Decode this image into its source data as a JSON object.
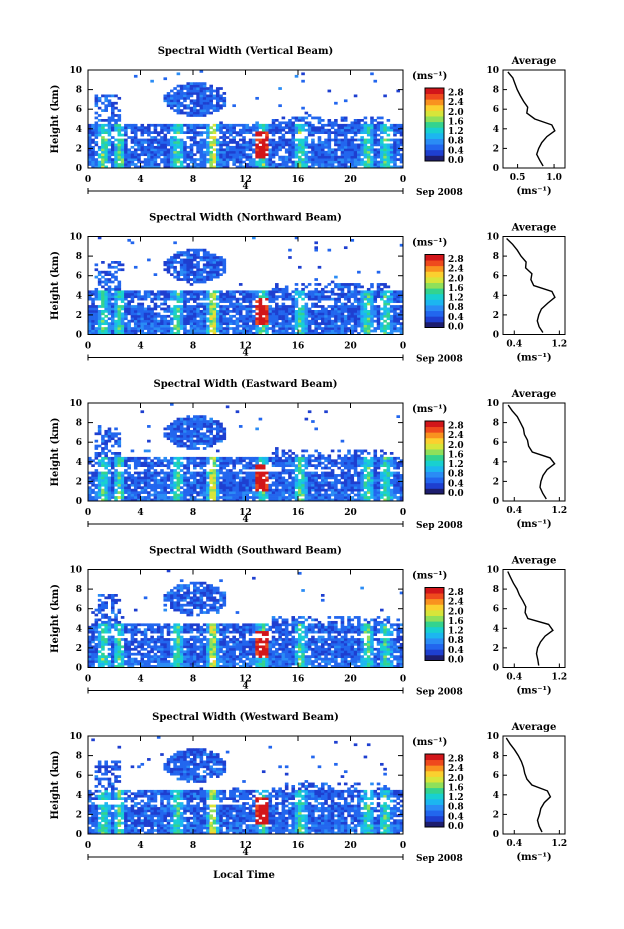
{
  "xlabel": "Local Time",
  "colorbar": {
    "unit_label": "(ms⁻¹)",
    "ticks": [
      "0.0",
      "0.4",
      "0.8",
      "1.2",
      "1.6",
      "2.0",
      "2.4",
      "2.8"
    ],
    "colors": [
      "#1d1d6e",
      "#1e3fd0",
      "#2266ee",
      "#2a8cf5",
      "#1cb6f0",
      "#18d0d0",
      "#33d38f",
      "#8fe05a",
      "#d7e53a",
      "#fbd02f",
      "#f9921f",
      "#ef4a1d",
      "#d2161a"
    ]
  },
  "chart_data": [
    {
      "type": "heatmap",
      "title": "Spectral Width (Vertical Beam)",
      "ylabel": "Height (km)",
      "x_ticks": [
        "0",
        "4",
        "8",
        "12",
        "16",
        "20",
        "0"
      ],
      "y_ticks": [
        "0",
        "2",
        "4",
        "6",
        "8",
        "10"
      ],
      "date_label": "Sep 2008",
      "day_label": "4",
      "xlim": [
        0,
        24
      ],
      "ylim": [
        0,
        10
      ],
      "profile": {
        "title": "Average",
        "x_ticks": [
          "0.5",
          "1.0"
        ],
        "xlim": [
          0.3,
          1.15
        ],
        "xlabel": "(ms⁻¹)",
        "heights_km": [
          0.2,
          0.8,
          1.4,
          2.0,
          2.6,
          3.2,
          3.8,
          4.4,
          5.0,
          5.6,
          6.2,
          6.8,
          7.4,
          8.0,
          8.6,
          9.2,
          9.8
        ],
        "values": [
          0.85,
          0.8,
          0.75,
          0.78,
          0.82,
          0.9,
          1.02,
          0.97,
          0.72,
          0.64,
          0.62,
          0.59,
          0.54,
          0.5,
          0.46,
          0.42,
          0.38
        ]
      }
    },
    {
      "type": "heatmap",
      "title": "Spectral Width (Northward Beam)",
      "ylabel": "Height (km)",
      "x_ticks": [
        "0",
        "4",
        "8",
        "12",
        "16",
        "20",
        "0"
      ],
      "y_ticks": [
        "0",
        "2",
        "4",
        "6",
        "8",
        "10"
      ],
      "date_label": "Sep 2008",
      "day_label": "4",
      "xlim": [
        0,
        24
      ],
      "ylim": [
        0,
        10
      ],
      "profile": {
        "title": "Average",
        "x_ticks": [
          "0.4",
          "1.2"
        ],
        "xlim": [
          0.2,
          1.3
        ],
        "xlabel": "(ms⁻¹)",
        "heights_km": [
          0.2,
          0.8,
          1.4,
          2.0,
          2.6,
          3.2,
          3.8,
          4.4,
          5.0,
          5.6,
          6.2,
          6.8,
          7.4,
          8.0,
          8.6,
          9.2,
          9.8
        ],
        "values": [
          0.9,
          0.85,
          0.8,
          0.82,
          0.9,
          1.0,
          1.12,
          1.08,
          0.75,
          0.68,
          0.72,
          0.62,
          0.6,
          0.52,
          0.45,
          0.36,
          0.28
        ]
      }
    },
    {
      "type": "heatmap",
      "title": "Spectral Width (Eastward Beam)",
      "ylabel": "Height (km)",
      "x_ticks": [
        "0",
        "4",
        "8",
        "12",
        "16",
        "20",
        "0"
      ],
      "y_ticks": [
        "0",
        "2",
        "4",
        "6",
        "8",
        "10"
      ],
      "date_label": "Sep 2008",
      "day_label": "4",
      "xlim": [
        0,
        24
      ],
      "ylim": [
        0,
        10
      ],
      "profile": {
        "title": "Average",
        "x_ticks": [
          "0.4",
          "1.2"
        ],
        "xlim": [
          0.2,
          1.3
        ],
        "xlabel": "(ms⁻¹)",
        "heights_km": [
          0.2,
          0.8,
          1.4,
          2.0,
          2.6,
          3.2,
          3.8,
          4.4,
          5.0,
          5.6,
          6.2,
          6.8,
          7.4,
          8.0,
          8.6,
          9.2,
          9.8
        ],
        "values": [
          0.95,
          0.9,
          0.85,
          0.88,
          0.92,
          1.0,
          1.1,
          1.05,
          0.72,
          0.66,
          0.62,
          0.58,
          0.55,
          0.5,
          0.44,
          0.36,
          0.28
        ]
      }
    },
    {
      "type": "heatmap",
      "title": "Spectral Width (Southward Beam)",
      "ylabel": "Height (km)",
      "x_ticks": [
        "0",
        "4",
        "8",
        "12",
        "16",
        "20",
        "0"
      ],
      "y_ticks": [
        "0",
        "2",
        "4",
        "6",
        "8",
        "10"
      ],
      "date_label": "Sep 2008",
      "day_label": "4",
      "xlim": [
        0,
        24
      ],
      "ylim": [
        0,
        10
      ],
      "profile": {
        "title": "Average",
        "x_ticks": [
          "0.4",
          "1.2"
        ],
        "xlim": [
          0.2,
          1.3
        ],
        "xlabel": "(ms⁻¹)",
        "heights_km": [
          0.2,
          0.8,
          1.4,
          2.0,
          2.6,
          3.2,
          3.8,
          4.4,
          5.0,
          5.6,
          6.2,
          6.8,
          7.4,
          8.0,
          8.6,
          9.2,
          9.8
        ],
        "values": [
          0.85,
          0.8,
          0.78,
          0.8,
          0.85,
          0.95,
          1.1,
          1.0,
          0.65,
          0.6,
          0.62,
          0.55,
          0.5,
          0.46,
          0.4,
          0.34,
          0.28
        ]
      }
    },
    {
      "type": "heatmap",
      "title": "Spectral Width (Westward Beam)",
      "ylabel": "Height (km)",
      "x_ticks": [
        "0",
        "4",
        "8",
        "12",
        "16",
        "20",
        "0"
      ],
      "y_ticks": [
        "0",
        "2",
        "4",
        "6",
        "8",
        "10"
      ],
      "date_label": "Sep 2008",
      "day_label": "4",
      "xlim": [
        0,
        24
      ],
      "ylim": [
        0,
        10
      ],
      "profile": {
        "title": "Average",
        "x_ticks": [
          "0.4",
          "1.2"
        ],
        "xlim": [
          0.2,
          1.3
        ],
        "xlabel": "(ms⁻¹)",
        "heights_km": [
          0.2,
          0.8,
          1.4,
          2.0,
          2.6,
          3.2,
          3.8,
          4.4,
          5.0,
          5.6,
          6.2,
          6.8,
          7.4,
          8.0,
          8.6,
          9.2,
          9.8
        ],
        "values": [
          0.9,
          0.85,
          0.8,
          0.83,
          0.88,
          0.95,
          1.05,
          1.0,
          0.7,
          0.62,
          0.6,
          0.56,
          0.52,
          0.48,
          0.42,
          0.34,
          0.26
        ]
      }
    }
  ]
}
